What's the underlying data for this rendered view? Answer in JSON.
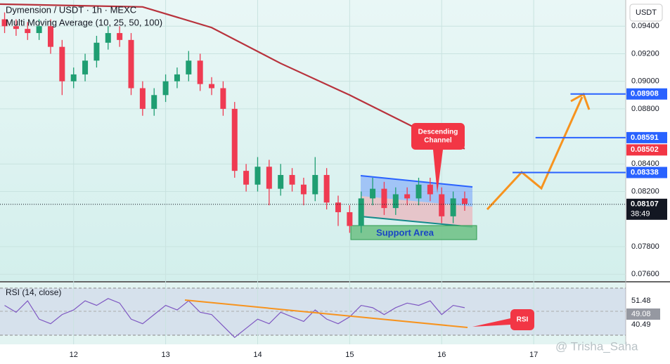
{
  "chart_data": {
    "type": "candlestick",
    "title": "Dymension / USDT · 1h · MEXC",
    "indicator": "Multi Moving Average (10, 25, 50, 100)",
    "currency_button": "USDT",
    "x": [
      11.25,
      11.375,
      11.5,
      11.625,
      11.75,
      11.875,
      12,
      12.125,
      12.25,
      12.375,
      12.5,
      12.625,
      12.75,
      12.875,
      13,
      13.125,
      13.25,
      13.375,
      13.5,
      13.625,
      13.75,
      13.875,
      14,
      14.125,
      14.25,
      14.375,
      14.5,
      14.625,
      14.75,
      14.875,
      15,
      15.125,
      15.25,
      15.375,
      15.5,
      15.625,
      15.75,
      15.875,
      16,
      16.125,
      16.25
    ],
    "open": [
      0.0945,
      0.094,
      0.0938,
      0.0935,
      0.094,
      0.0925,
      0.09,
      0.0905,
      0.0915,
      0.0928,
      0.0935,
      0.093,
      0.0895,
      0.088,
      0.089,
      0.09,
      0.0905,
      0.0915,
      0.0898,
      0.0895,
      0.088,
      0.0835,
      0.0825,
      0.0838,
      0.0822,
      0.0832,
      0.0825,
      0.0818,
      0.0832,
      0.0812,
      0.0805,
      0.0795,
      0.0815,
      0.0822,
      0.0808,
      0.0818,
      0.0815,
      0.0825,
      0.0818,
      0.0802,
      0.0815
    ],
    "high": [
      0.095,
      0.0945,
      0.0943,
      0.0945,
      0.0945,
      0.093,
      0.091,
      0.092,
      0.0933,
      0.094,
      0.094,
      0.0935,
      0.09,
      0.0895,
      0.0905,
      0.091,
      0.0922,
      0.092,
      0.0903,
      0.09,
      0.0885,
      0.084,
      0.0845,
      0.0843,
      0.084,
      0.0837,
      0.083,
      0.0845,
      0.0837,
      0.0817,
      0.081,
      0.082,
      0.083,
      0.0827,
      0.0823,
      0.0823,
      0.083,
      0.083,
      0.0823,
      0.082,
      0.082
    ],
    "low": [
      0.0935,
      0.0933,
      0.093,
      0.093,
      0.092,
      0.089,
      0.0895,
      0.09,
      0.091,
      0.0923,
      0.0925,
      0.089,
      0.0875,
      0.0875,
      0.0885,
      0.0895,
      0.09,
      0.0893,
      0.089,
      0.0875,
      0.083,
      0.082,
      0.082,
      0.081,
      0.0817,
      0.082,
      0.081,
      0.0813,
      0.0807,
      0.0795,
      0.079,
      0.079,
      0.081,
      0.0803,
      0.0803,
      0.081,
      0.081,
      0.0813,
      0.0797,
      0.0797,
      0.0806
    ],
    "close": [
      0.094,
      0.0938,
      0.0935,
      0.094,
      0.0925,
      0.09,
      0.0905,
      0.0915,
      0.0928,
      0.0935,
      0.093,
      0.0895,
      0.088,
      0.089,
      0.09,
      0.0905,
      0.0915,
      0.0898,
      0.0895,
      0.088,
      0.0835,
      0.0825,
      0.0838,
      0.0822,
      0.0832,
      0.0825,
      0.0818,
      0.0832,
      0.0812,
      0.0805,
      0.0795,
      0.0815,
      0.0822,
      0.0808,
      0.0818,
      0.0815,
      0.0825,
      0.0818,
      0.0802,
      0.0815,
      0.0811
    ],
    "up_color": "#1f9e72",
    "down_color": "#ef3b52",
    "ma": {
      "color": "#b8323c",
      "x": [
        11.2,
        12.75,
        13.5,
        14.25,
        15.0,
        15.75,
        16.25
      ],
      "values": [
        0.0956,
        0.0954,
        0.0939,
        0.0913,
        0.089,
        0.0865,
        0.0851
      ]
    },
    "xlim": [
      11.2,
      18
    ],
    "xticks": [
      12,
      13,
      14,
      15,
      16,
      17
    ],
    "ylim": [
      0.0755,
      0.0959
    ],
    "yticks": [
      {
        "value": 0.094,
        "label": "0.09400"
      },
      {
        "value": 0.092,
        "label": "0.09200"
      },
      {
        "value": 0.09,
        "label": "0.09000"
      },
      {
        "value": 0.088,
        "label": "0.08800"
      },
      {
        "value": 0.084,
        "label": "0.08400"
      },
      {
        "value": 0.082,
        "label": "0.08200"
      },
      {
        "value": 0.078,
        "label": "0.07800"
      },
      {
        "value": 0.076,
        "label": "0.07600"
      }
    ],
    "grid": true,
    "levels": [
      {
        "value": 0.08908,
        "color": "#2962ff",
        "x_start": 17.4
      },
      {
        "value": 0.08591,
        "color": "#2962ff",
        "x_start": 17.02
      },
      {
        "value": 0.08338,
        "color": "#2962ff",
        "x_start": 16.77
      }
    ],
    "ma_last": {
      "value": 0.08502,
      "color": "#f23645"
    },
    "current": {
      "value": 0.08107,
      "countdown": "38:49"
    },
    "annotations": {
      "channel": [
        "Descending",
        "Channel"
      ],
      "support": "Support Area",
      "rsi": "RSI"
    },
    "rsi": {
      "title": "RSI (14, close)",
      "color": "#7e57c2",
      "ylim": [
        33,
        60
      ],
      "values": [
        50,
        47,
        52,
        44,
        42,
        46,
        48,
        52,
        50,
        53,
        51,
        44,
        42,
        46,
        50,
        48,
        52,
        47,
        46,
        41,
        36,
        40,
        44,
        42,
        47,
        45,
        43,
        48,
        44,
        42,
        45,
        50,
        49,
        46,
        49,
        51,
        50,
        52,
        46,
        50,
        49
      ],
      "labels": [
        51.48,
        49.08,
        40.49
      ]
    },
    "watermark": "@ Trisha_Saha"
  }
}
